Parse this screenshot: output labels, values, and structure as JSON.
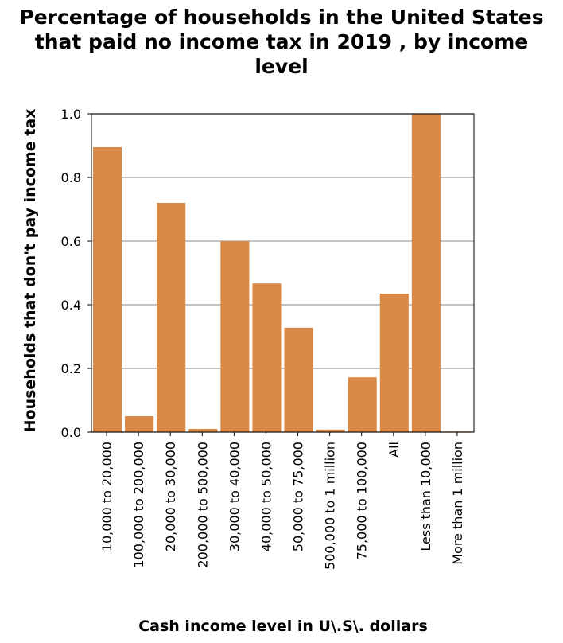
{
  "chart_data": {
    "type": "bar",
    "title_lines": [
      "Percentage of households in the United States",
      "that paid no income tax in 2019 , by income",
      "level"
    ],
    "xlabel": "Cash income level in U\\.S\\. dollars",
    "ylabel": "Households that don't pay income tax",
    "categories": [
      "10,000 to 20,000",
      "100,000 to 200,000",
      "20,000 to 30,000",
      "200,000 to 500,000",
      "30,000 to 40,000",
      "40,000 to 50,000",
      "50,000 to 75,000",
      "500,000 to 1 million",
      "75,000 to 100,000",
      "All",
      "Less than 10,000",
      "More than 1 million"
    ],
    "values": [
      0.895,
      0.05,
      0.72,
      0.01,
      0.6,
      0.467,
      0.328,
      0.008,
      0.172,
      0.435,
      1.0,
      0.002
    ],
    "ylim": [
      0,
      1.0
    ],
    "yticks": [
      0.0,
      0.2,
      0.4,
      0.6,
      0.8,
      1.0
    ],
    "ytick_labels": [
      "0.0",
      "0.2",
      "0.4",
      "0.6",
      "0.8",
      "1.0"
    ],
    "grid": true,
    "bar_color": "#d98845"
  }
}
